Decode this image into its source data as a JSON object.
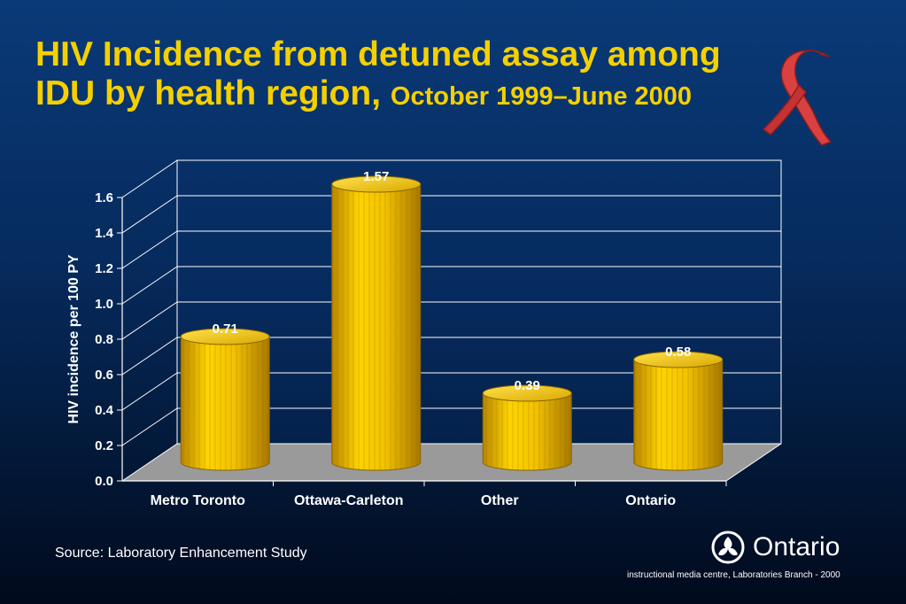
{
  "title": {
    "main_line1": "HIV Incidence from detuned assay among",
    "main_line2": "IDU by health region,",
    "subtitle": "October 1999–June 2000"
  },
  "chart_data": {
    "type": "bar",
    "categories": [
      "Metro Toronto",
      "Ottawa-Carleton",
      "Other",
      "Ontario"
    ],
    "values": [
      0.71,
      1.57,
      0.39,
      0.58
    ],
    "value_labels": [
      "0.71",
      "1.57",
      "0.39",
      "0.58"
    ],
    "ylabel": "HIV incidence per 100 PY",
    "xlabel": "",
    "ylim": [
      0,
      1.6
    ],
    "yticks": [
      "0.0",
      "0.2",
      "0.4",
      "0.6",
      "0.8",
      "1.0",
      "1.2",
      "1.4",
      "1.6"
    ],
    "grid": true,
    "style": "3d-cylinder",
    "bar_color": "#f2c200"
  },
  "footer": {
    "source": "Source: Laboratory Enhancement Study",
    "logo_text": "Ontario",
    "credit": "instructional media centre, Laboratories Branch - 2000"
  },
  "icons": {
    "ribbon": "awareness-ribbon-icon",
    "logo": "trillium-logo-icon"
  },
  "colors": {
    "title": "#f5d000",
    "ribbon": "#d94040",
    "floor": "#9a9a9a"
  }
}
